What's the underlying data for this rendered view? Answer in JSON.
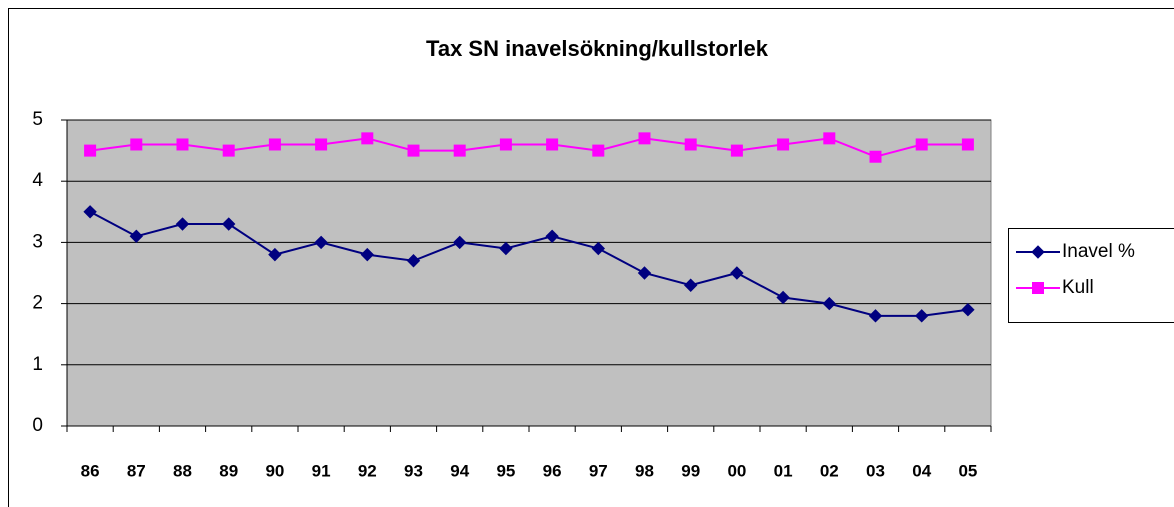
{
  "chart_data": {
    "type": "line",
    "title": "Tax SN inavelsökning/kullstorlek",
    "categories": [
      "86",
      "87",
      "88",
      "89",
      "90",
      "91",
      "92",
      "93",
      "94",
      "95",
      "96",
      "97",
      "98",
      "99",
      "00",
      "01",
      "02",
      "03",
      "04",
      "05"
    ],
    "series": [
      {
        "name": "Inavel %",
        "color": "#000080",
        "marker": "diamond",
        "values": [
          3.5,
          3.1,
          3.3,
          3.3,
          2.8,
          3.0,
          2.8,
          2.7,
          3.0,
          2.9,
          3.1,
          2.9,
          2.5,
          2.3,
          2.5,
          2.1,
          2.0,
          1.8,
          1.8,
          1.9
        ]
      },
      {
        "name": "Kull",
        "color": "#ff00ff",
        "marker": "square",
        "values": [
          4.5,
          4.6,
          4.6,
          4.5,
          4.6,
          4.6,
          4.7,
          4.5,
          4.5,
          4.6,
          4.6,
          4.5,
          4.7,
          4.6,
          4.5,
          4.6,
          4.7,
          4.4,
          4.6,
          4.6
        ]
      }
    ],
    "ylim": [
      0,
      5
    ],
    "yticks": [
      0,
      1,
      2,
      3,
      4,
      5
    ],
    "grid": true,
    "legend": "right"
  }
}
